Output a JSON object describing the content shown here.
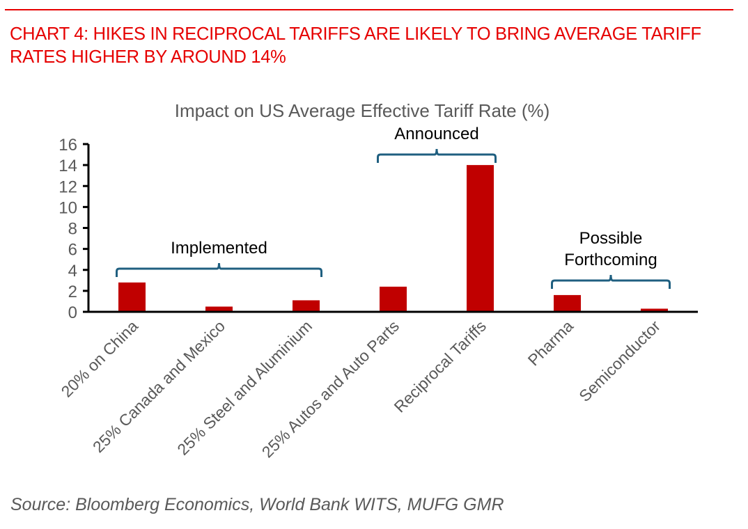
{
  "headline": "CHART 4: HIKES IN RECIPROCAL TARIFFS ARE LIKELY TO BRING AVERAGE TARIFF RATES HIGHER BY AROUND 14%",
  "source": "Source: Bloomberg Economics, World Bank WITS, MUFG GMR",
  "colors": {
    "headline": "#e60000",
    "bar": "#c00000",
    "bracket": "#1f5f80",
    "axis": "#000000",
    "tick_label": "#595959"
  },
  "chart_data": {
    "type": "bar",
    "title": "Impact on US Average Effective Tariff Rate (%)",
    "xlabel": "",
    "ylabel": "",
    "ylim": [
      0,
      16
    ],
    "yticks": [
      0,
      2,
      4,
      6,
      8,
      10,
      12,
      14,
      16
    ],
    "grid": false,
    "legend": "none",
    "categories": [
      "20% on China",
      "25% Canada and Mexico",
      "25% Steel and Aluminium",
      "25% Autos and Auto Parts",
      "Reciprocal Tariffs",
      "Pharma",
      "Semiconductor"
    ],
    "values": [
      2.8,
      0.5,
      1.1,
      2.4,
      14.0,
      1.6,
      0.3
    ],
    "annotations": [
      {
        "label": "Implemented",
        "lines": [
          "Implemented"
        ],
        "categories": [
          0,
          2
        ]
      },
      {
        "label": "Announced",
        "lines": [
          "Announced"
        ],
        "categories": [
          3,
          4
        ]
      },
      {
        "label": "Possible Forthcoming",
        "lines": [
          "Possible",
          "Forthcoming"
        ],
        "categories": [
          5,
          6
        ]
      }
    ]
  }
}
